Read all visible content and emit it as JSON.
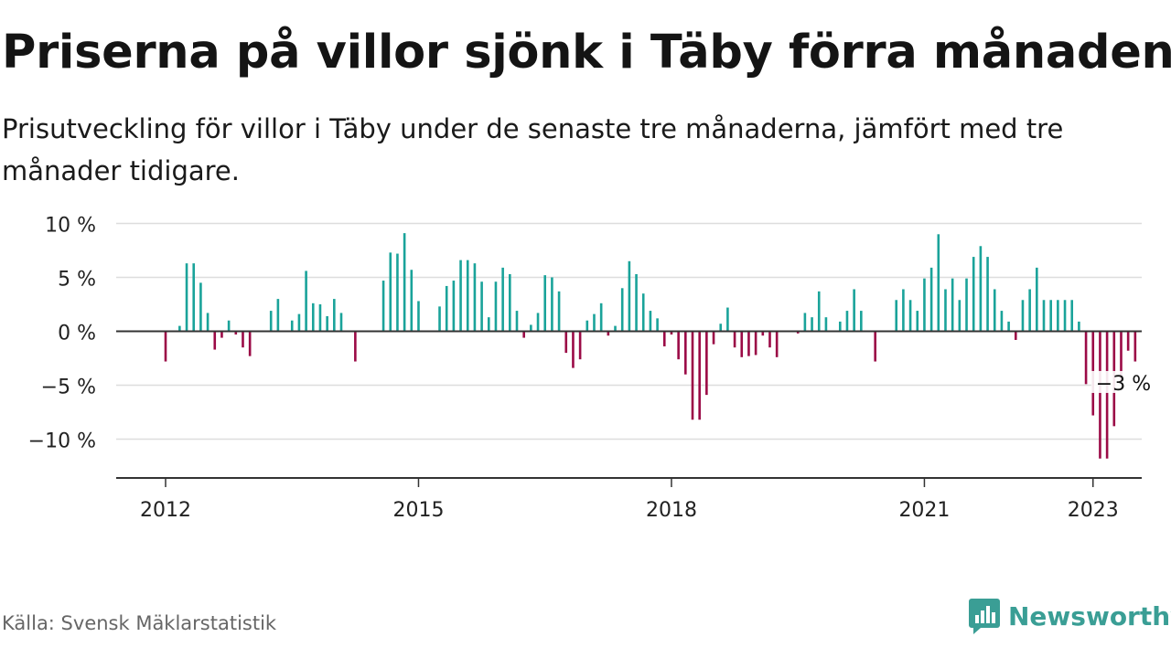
{
  "header": {
    "title": "Priserna på villor sjönk i Täby förra månaden",
    "subtitle": "Prisutveckling för villor i Täby under de senaste tre månaderna, jämfört med tre månader tidigare."
  },
  "footer": {
    "source": "Källa: Svensk Mäklarstatistik",
    "brand": "Newsworthy"
  },
  "colors": {
    "positive": "#1aa39a",
    "negative": "#9b0a46",
    "grid": "#dddddd",
    "axis": "#333333"
  },
  "chart_data": {
    "type": "bar",
    "x_start": "2012-01",
    "ylim": [
      -13.5,
      10.5
    ],
    "y_ticks": [
      10,
      5,
      0,
      -5,
      -10
    ],
    "y_tick_labels": [
      "10 %",
      "5 %",
      "0 %",
      "−5 %",
      "−10 %"
    ],
    "x_ticks": [
      {
        "label": "2012",
        "index": 0
      },
      {
        "label": "2015",
        "index": 36
      },
      {
        "label": "2018",
        "index": 72
      },
      {
        "label": "2021",
        "index": 108
      },
      {
        "label": "2023",
        "index": 132
      }
    ],
    "values": [
      -2.8,
      null,
      0.5,
      6.3,
      6.3,
      4.5,
      1.7,
      -1.7,
      -0.6,
      1.0,
      -0.3,
      -1.5,
      -2.3,
      null,
      null,
      1.9,
      3.0,
      null,
      1.0,
      1.6,
      5.6,
      2.6,
      2.5,
      1.4,
      3.0,
      1.7,
      null,
      -2.8,
      null,
      null,
      null,
      4.7,
      7.3,
      7.2,
      9.1,
      5.7,
      2.8,
      null,
      null,
      2.3,
      4.2,
      4.7,
      6.6,
      6.6,
      6.3,
      4.6,
      1.3,
      4.6,
      5.9,
      5.3,
      1.9,
      -0.6,
      0.6,
      1.7,
      5.2,
      5.0,
      3.7,
      -2.0,
      -3.4,
      -2.6,
      1.0,
      1.6,
      2.6,
      -0.4,
      0.5,
      4.0,
      6.5,
      5.3,
      3.5,
      1.9,
      1.2,
      -1.4,
      -0.3,
      -2.6,
      -4.0,
      -8.2,
      -8.2,
      -5.9,
      -1.2,
      0.7,
      2.2,
      -1.5,
      -2.4,
      -2.3,
      -2.2,
      -0.4,
      -1.5,
      -2.4,
      null,
      null,
      -0.2,
      1.7,
      1.3,
      3.7,
      1.3,
      null,
      0.9,
      1.9,
      3.9,
      1.9,
      null,
      -2.8,
      null,
      null,
      2.9,
      3.9,
      2.9,
      1.9,
      4.9,
      5.9,
      9.0,
      3.9,
      4.9,
      2.9,
      4.9,
      6.9,
      7.9,
      6.9,
      3.9,
      1.9,
      0.9,
      -0.8,
      2.9,
      3.9,
      5.9,
      2.9,
      2.9,
      2.9,
      2.9,
      2.9,
      0.9,
      -4.9,
      -7.8,
      -11.8,
      -11.8,
      -8.8,
      -4.6,
      -1.8,
      -2.8
    ],
    "annotation": {
      "label": "−3 %",
      "index": 135
    }
  }
}
